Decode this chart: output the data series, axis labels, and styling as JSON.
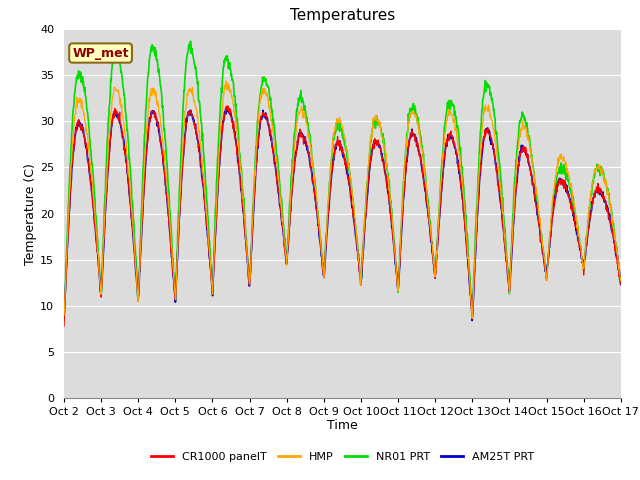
{
  "title": "Temperatures",
  "xlabel": "Time",
  "ylabel": "Temperature (C)",
  "ylim": [
    0,
    40
  ],
  "yticks": [
    0,
    5,
    10,
    15,
    20,
    25,
    30,
    35,
    40
  ],
  "x_labels": [
    "Oct 2",
    "Oct 3",
    "Oct 4",
    "Oct 5",
    "Oct 6",
    "Oct 7",
    "Oct 8",
    "Oct 9",
    "Oct 10",
    "Oct 11",
    "Oct 12",
    "Oct 13",
    "Oct 14",
    "Oct 15",
    "Oct 16",
    "Oct 17"
  ],
  "annotation": "WP_met",
  "annotation_color": "#8B0000",
  "annotation_bg": "#FFFFC0",
  "annotation_edge": "#8B6914",
  "bg_color": "#DCDCDC",
  "fig_bg": "#FFFFFF",
  "line_colors": {
    "cr1000": "#FF0000",
    "hmp": "#FFA500",
    "nr01": "#00DD00",
    "am25t": "#0000CC"
  },
  "line_labels": [
    "CR1000 panelT",
    "HMP",
    "NR01 PRT",
    "AM25T PRT"
  ],
  "title_fontsize": 11,
  "label_fontsize": 9,
  "tick_fontsize": 8,
  "legend_fontsize": 8,
  "grid_color": "#FFFFFF",
  "grid_lw": 0.8,
  "day_peaks": [
    29,
    31,
    31,
    31,
    31,
    32,
    29,
    28,
    27,
    29,
    28,
    29,
    29,
    24,
    23,
    22
  ],
  "day_mins": [
    8.5,
    11,
    10.5,
    10.5,
    11.5,
    12,
    14.5,
    13,
    12.5,
    11.5,
    13,
    8.5,
    11.5,
    13,
    14,
    12.5
  ],
  "nr01_extra": [
    5,
    6,
    7,
    7,
    7,
    3,
    5,
    2,
    2,
    3,
    3,
    5,
    5,
    1,
    2,
    3
  ],
  "hmp_extra_pct": 0.2
}
